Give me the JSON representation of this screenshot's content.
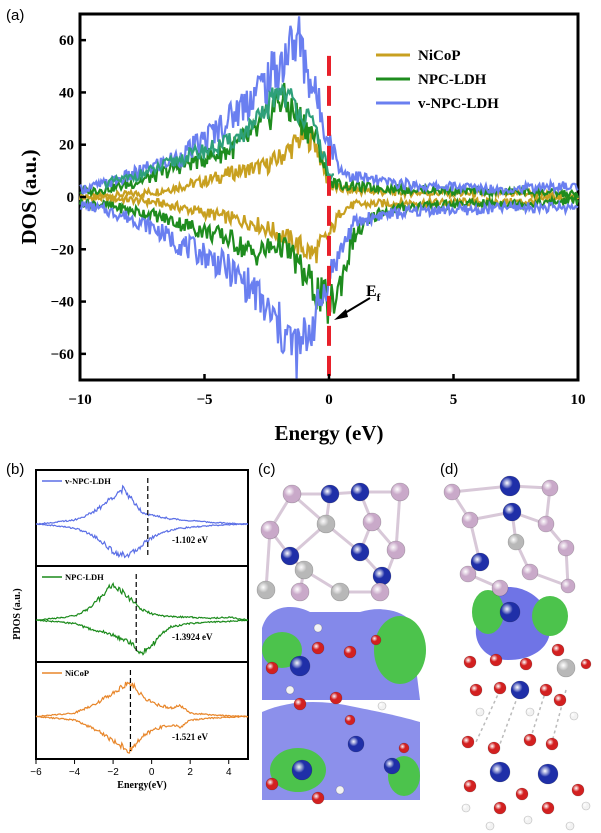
{
  "panel_labels": {
    "a": "(a)",
    "b": "(b)",
    "c": "(c)",
    "d": "(d)"
  },
  "colors": {
    "nicop_a": "#c8a020",
    "npc_a": "#1e8c1e",
    "npc_teal_a": "#2ea07a",
    "vnpc_a": "#6a7ff0",
    "ef_line": "#e8202a",
    "vnpc_b": "#5b6fe6",
    "npc_b": "#1a8a1a",
    "nicop_b": "#e8862a",
    "atom_blue": "#1f2fa8",
    "atom_gray": "#b8b8b8",
    "atom_pink": "#c9a9c9",
    "atom_red": "#d32020",
    "atom_white": "#f2f2f2",
    "iso_blue": "#6f74e6",
    "iso_green": "#4cc34c"
  },
  "chart_data": [
    {
      "id": "a",
      "type": "line",
      "xlabel": "Energy (eV)",
      "ylabel": "DOS (a.u.)",
      "xlim": [
        -10,
        10
      ],
      "ylim": [
        -70,
        70
      ],
      "xticks": [
        -10,
        -5,
        0,
        5,
        10
      ],
      "yticks": [
        -60,
        -40,
        -20,
        0,
        20,
        40,
        60
      ],
      "legend_position": "top-right",
      "fermi_level": 0,
      "annotation": {
        "text": "E",
        "subscript": "f",
        "x": 0.2,
        "y": -40
      },
      "series": [
        {
          "name": "NiCoP",
          "color_key": "nicop_a",
          "x": [
            -10,
            -9,
            -8,
            -7,
            -6,
            -5,
            -4,
            -3,
            -2.5,
            -2,
            -1.5,
            -1,
            -0.6,
            -0.3,
            0,
            0.5,
            1,
            2,
            3,
            4,
            5,
            6,
            7,
            8,
            9,
            10
          ],
          "up": [
            0,
            0.5,
            1,
            2,
            4,
            6,
            9,
            11,
            12,
            15,
            19,
            24,
            22,
            14,
            4,
            3,
            2.5,
            2,
            1.8,
            1.6,
            1.4,
            1.2,
            1.2,
            1.5,
            0.5,
            0
          ],
          "down": [
            0,
            -0.5,
            -1,
            -2,
            -4,
            -6,
            -8,
            -10,
            -12,
            -14,
            -17,
            -20,
            -22,
            -18,
            -15,
            -5,
            -3,
            -2.5,
            -2.3,
            -2.2,
            -2,
            -2,
            -2,
            -1.8,
            -0.5,
            0
          ]
        },
        {
          "name": "NPC-LDH",
          "color_key": "npc_a",
          "x": [
            -10,
            -9,
            -8,
            -7,
            -6,
            -5,
            -4,
            -3,
            -2.5,
            -2,
            -1.5,
            -1,
            -0.5,
            0,
            0.3,
            0.6,
            1,
            2,
            3,
            4,
            5,
            6,
            7,
            8,
            9,
            10
          ],
          "up": [
            2,
            3,
            5,
            8,
            12,
            15,
            18,
            24,
            30,
            38,
            33,
            28,
            22,
            6,
            5,
            4.5,
            4,
            3.5,
            3,
            2.8,
            2.5,
            2.2,
            2,
            2.2,
            1.5,
            1
          ],
          "down": [
            -2,
            -3,
            -5,
            -7,
            -10,
            -13,
            -16,
            -22,
            -20,
            -18,
            -22,
            -30,
            -36,
            -42,
            -38,
            -28,
            -15,
            -6,
            -4,
            -3,
            -3,
            -2.5,
            -2.5,
            -2.5,
            -2,
            -1
          ]
        },
        {
          "name": "v-NPC-LDH",
          "color_key": "vnpc_a",
          "x": [
            -10,
            -9,
            -8,
            -7,
            -6,
            -5,
            -4,
            -3,
            -2.5,
            -2,
            -1.5,
            -1.2,
            -1,
            -0.5,
            0,
            0.5,
            1,
            2,
            3,
            4,
            5,
            6,
            7,
            8,
            9,
            10
          ],
          "up": [
            3,
            5,
            8,
            12,
            15,
            22,
            30,
            40,
            44,
            50,
            58,
            60,
            52,
            38,
            22,
            10,
            8,
            6,
            5,
            4,
            4,
            3.5,
            3,
            3.5,
            4,
            4
          ],
          "down": [
            -3,
            -5,
            -8,
            -12,
            -18,
            -22,
            -28,
            -36,
            -44,
            -50,
            -56,
            -60,
            -55,
            -45,
            -30,
            -20,
            -10,
            -7,
            -6,
            -5,
            -5,
            -5,
            -4,
            -4,
            -4,
            -4
          ]
        }
      ]
    },
    {
      "id": "b",
      "type": "line",
      "xlabel": "Energy(eV)",
      "ylabel": "PDOS (a.u.)",
      "xlim": [
        -6,
        5
      ],
      "xticks": [
        -6,
        -4,
        -2,
        0,
        2,
        4
      ],
      "legend_position": "top-left",
      "subplots": [
        {
          "name": "v-NPC-LDH",
          "color_key": "vnpc_b",
          "center_line": -0.2,
          "label": "-1.102 eV",
          "x": [
            -6,
            -5,
            -4,
            -3.5,
            -3,
            -2.5,
            -2,
            -1.5,
            -1,
            -0.5,
            0,
            0.5,
            1,
            1.5,
            2,
            3,
            4,
            5
          ],
          "up": [
            0,
            0.05,
            0.12,
            0.22,
            0.35,
            0.55,
            0.8,
            1,
            0.7,
            0.35,
            0.25,
            0.2,
            0.15,
            0.12,
            0.1,
            0.05,
            0.02,
            0
          ],
          "down": [
            0,
            -0.05,
            -0.12,
            -0.22,
            -0.35,
            -0.55,
            -0.8,
            -0.9,
            -0.85,
            -0.6,
            -0.4,
            -0.25,
            -0.18,
            -0.12,
            -0.1,
            -0.05,
            -0.02,
            0
          ]
        },
        {
          "name": "NPC-LDH",
          "color_key": "npc_b",
          "center_line": -0.8,
          "label": "-1.3924 eV",
          "x": [
            -6,
            -5,
            -4,
            -3.5,
            -3,
            -2.5,
            -2.2,
            -2,
            -1.5,
            -1,
            -0.5,
            0,
            0.5,
            1,
            2,
            3,
            4,
            5
          ],
          "up": [
            0,
            0.05,
            0.12,
            0.25,
            0.45,
            0.75,
            0.95,
            1,
            0.8,
            0.55,
            0.3,
            0.18,
            0.12,
            0.1,
            0.08,
            0.05,
            0.08,
            0
          ],
          "down": [
            0,
            -0.05,
            -0.1,
            -0.2,
            -0.3,
            -0.35,
            -0.4,
            -0.45,
            -0.55,
            -0.7,
            -0.95,
            -0.75,
            -0.4,
            -0.2,
            -0.1,
            -0.06,
            -0.04,
            0
          ]
        },
        {
          "name": "NiCoP",
          "color_key": "nicop_b",
          "center_line": -1.1,
          "label": "-1.521 eV",
          "x": [
            -6,
            -5,
            -4,
            -3.5,
            -3,
            -2.5,
            -2,
            -1.5,
            -1.2,
            -1,
            -0.5,
            0,
            0.5,
            1,
            1.5,
            2,
            3,
            4,
            5
          ],
          "up": [
            0,
            0.05,
            0.1,
            0.22,
            0.35,
            0.5,
            0.7,
            0.85,
            1,
            0.9,
            0.6,
            0.4,
            0.3,
            0.25,
            0.3,
            0.1,
            0.05,
            0.02,
            0
          ],
          "down": [
            0,
            -0.05,
            -0.1,
            -0.22,
            -0.35,
            -0.5,
            -0.7,
            -0.85,
            -1,
            -0.9,
            -0.6,
            -0.4,
            -0.3,
            -0.25,
            -0.3,
            -0.1,
            -0.05,
            -0.02,
            0
          ]
        }
      ]
    }
  ]
}
